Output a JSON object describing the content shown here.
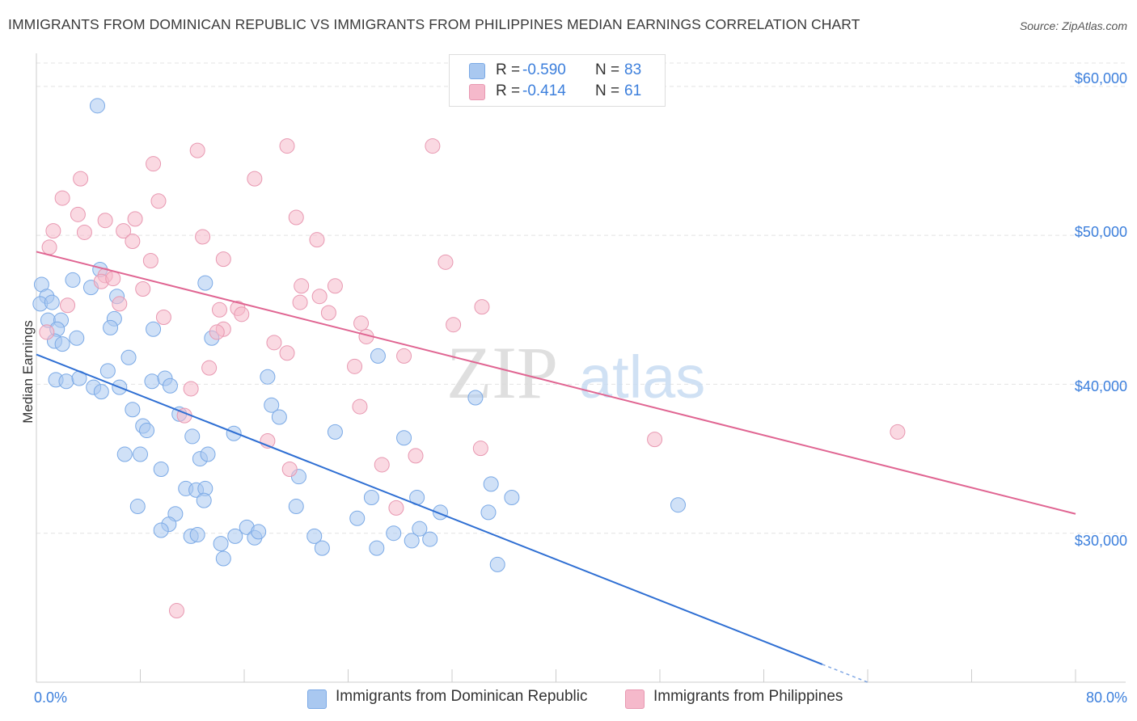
{
  "title": "IMMIGRANTS FROM DOMINICAN REPUBLIC VS IMMIGRANTS FROM PHILIPPINES MEDIAN EARNINGS CORRELATION CHART",
  "source": "Source: ZipAtlas.com",
  "watermark": {
    "zip": "ZIP",
    "atlas": "atlas"
  },
  "legend": {
    "rows": [
      {
        "r_label": "R =",
        "r_value": "-0.590",
        "n_label": "N =",
        "n_value": "83",
        "color": "#a9c8f0"
      },
      {
        "r_label": "R =",
        "r_value": "-0.414",
        "n_label": "N =",
        "n_value": "61",
        "color": "#f5b9cb"
      }
    ]
  },
  "bottom_legend": [
    "Immigrants from Dominican Republic",
    "Immigrants from Philippines"
  ],
  "colors": {
    "blue_fill": "#a9c8f0",
    "blue_stroke": "#7aa9e6",
    "blue_line": "#2f6fd3",
    "pink_fill": "#f5b9cb",
    "pink_stroke": "#e898b1",
    "pink_line": "#e06592",
    "axis_text": "#3c7fdc",
    "grid": "#e3e3e3"
  },
  "chart_data": {
    "type": "scatter",
    "title": "IMMIGRANTS FROM DOMINICAN REPUBLIC VS IMMIGRANTS FROM PHILIPPINES MEDIAN EARNINGS CORRELATION CHART",
    "xlabel": "",
    "ylabel": "Median Earnings",
    "xlim": [
      0,
      80
    ],
    "ylim": [
      20000,
      62000
    ],
    "x_tick_labels": [
      "0.0%",
      "80.0%"
    ],
    "y_ticks": [
      30000,
      40000,
      50000,
      60000
    ],
    "y_tick_labels": [
      "$30,000",
      "$40,000",
      "$50,000",
      "$60,000"
    ],
    "grid": true,
    "legend_position": "top-center",
    "series": [
      {
        "name": "Immigrants from Dominican Republic",
        "R": -0.59,
        "N": 83,
        "trend": {
          "x0": 0,
          "y0": 42000,
          "x1": 60.5,
          "y1": 21200,
          "dash_to_x": 64
        },
        "points": [
          [
            4.7,
            58700
          ],
          [
            0.4,
            46700
          ],
          [
            0.8,
            45900
          ],
          [
            0.3,
            45400
          ],
          [
            1.2,
            45500
          ],
          [
            2.8,
            47000
          ],
          [
            4.2,
            46500
          ],
          [
            4.9,
            47700
          ],
          [
            6.2,
            45900
          ],
          [
            0.9,
            44300
          ],
          [
            1.9,
            44300
          ],
          [
            1.6,
            43700
          ],
          [
            6.0,
            44400
          ],
          [
            5.7,
            43800
          ],
          [
            9.0,
            43700
          ],
          [
            13.0,
            46800
          ],
          [
            13.5,
            43100
          ],
          [
            1.4,
            42900
          ],
          [
            2.0,
            42700
          ],
          [
            3.1,
            43100
          ],
          [
            7.1,
            41800
          ],
          [
            26.3,
            41900
          ],
          [
            1.5,
            40300
          ],
          [
            2.3,
            40200
          ],
          [
            3.3,
            40400
          ],
          [
            4.4,
            39800
          ],
          [
            5.0,
            39500
          ],
          [
            6.4,
            39800
          ],
          [
            5.5,
            40900
          ],
          [
            8.9,
            40200
          ],
          [
            9.9,
            40400
          ],
          [
            10.3,
            39900
          ],
          [
            17.8,
            40500
          ],
          [
            18.1,
            38600
          ],
          [
            7.4,
            38300
          ],
          [
            11.0,
            38000
          ],
          [
            8.2,
            37200
          ],
          [
            8.5,
            36900
          ],
          [
            18.7,
            37800
          ],
          [
            23.0,
            36800
          ],
          [
            28.3,
            36400
          ],
          [
            33.8,
            39100
          ],
          [
            12.0,
            36500
          ],
          [
            15.2,
            36700
          ],
          [
            6.8,
            35300
          ],
          [
            8.0,
            35300
          ],
          [
            12.6,
            35000
          ],
          [
            13.2,
            35300
          ],
          [
            9.6,
            34300
          ],
          [
            20.2,
            33800
          ],
          [
            11.5,
            33000
          ],
          [
            12.3,
            32900
          ],
          [
            13.0,
            33000
          ],
          [
            12.9,
            32200
          ],
          [
            35.0,
            33300
          ],
          [
            7.8,
            31800
          ],
          [
            10.7,
            31300
          ],
          [
            20.0,
            31800
          ],
          [
            25.8,
            32400
          ],
          [
            29.3,
            32400
          ],
          [
            34.8,
            31400
          ],
          [
            36.6,
            32400
          ],
          [
            49.4,
            31900
          ],
          [
            10.2,
            30600
          ],
          [
            9.6,
            30200
          ],
          [
            11.9,
            29800
          ],
          [
            12.4,
            29900
          ],
          [
            14.2,
            29300
          ],
          [
            15.3,
            29800
          ],
          [
            16.2,
            30400
          ],
          [
            16.8,
            29700
          ],
          [
            17.1,
            30100
          ],
          [
            21.4,
            29800
          ],
          [
            22.0,
            29000
          ],
          [
            24.7,
            31000
          ],
          [
            26.2,
            29000
          ],
          [
            27.5,
            30000
          ],
          [
            28.9,
            29500
          ],
          [
            30.3,
            29600
          ],
          [
            31.1,
            31400
          ],
          [
            14.4,
            28300
          ],
          [
            35.5,
            27900
          ],
          [
            29.5,
            30300
          ]
        ]
      },
      {
        "name": "Immigrants from Philippines",
        "R": -0.414,
        "N": 61,
        "trend": {
          "x0": 0,
          "y0": 48900,
          "x1": 80,
          "y1": 31300
        },
        "points": [
          [
            1.0,
            49200
          ],
          [
            1.3,
            50300
          ],
          [
            2.0,
            52500
          ],
          [
            3.4,
            53800
          ],
          [
            3.2,
            51400
          ],
          [
            3.7,
            50200
          ],
          [
            5.3,
            51000
          ],
          [
            6.7,
            50300
          ],
          [
            7.4,
            49600
          ],
          [
            7.6,
            51100
          ],
          [
            9.0,
            54800
          ],
          [
            9.4,
            52300
          ],
          [
            12.4,
            55700
          ],
          [
            12.8,
            49900
          ],
          [
            14.4,
            48400
          ],
          [
            16.8,
            53800
          ],
          [
            19.3,
            56000
          ],
          [
            20.0,
            51200
          ],
          [
            21.6,
            49700
          ],
          [
            30.5,
            56000
          ],
          [
            31.5,
            48200
          ],
          [
            5.3,
            47300
          ],
          [
            5.0,
            46900
          ],
          [
            5.9,
            47100
          ],
          [
            8.2,
            46400
          ],
          [
            8.8,
            48300
          ],
          [
            2.4,
            45300
          ],
          [
            6.4,
            45400
          ],
          [
            9.8,
            44500
          ],
          [
            14.1,
            45000
          ],
          [
            15.5,
            45100
          ],
          [
            15.8,
            44700
          ],
          [
            20.3,
            45500
          ],
          [
            20.4,
            46600
          ],
          [
            21.8,
            45900
          ],
          [
            22.5,
            44800
          ],
          [
            23.0,
            46600
          ],
          [
            25.0,
            44100
          ],
          [
            34.3,
            45200
          ],
          [
            0.8,
            43500
          ],
          [
            14.4,
            43700
          ],
          [
            18.3,
            42800
          ],
          [
            19.3,
            42100
          ],
          [
            25.4,
            43200
          ],
          [
            28.3,
            41900
          ],
          [
            32.1,
            44000
          ],
          [
            13.3,
            41100
          ],
          [
            24.5,
            41200
          ],
          [
            11.9,
            39700
          ],
          [
            11.4,
            37900
          ],
          [
            24.9,
            38500
          ],
          [
            17.8,
            36200
          ],
          [
            19.5,
            34300
          ],
          [
            26.6,
            34600
          ],
          [
            29.2,
            35200
          ],
          [
            34.2,
            35700
          ],
          [
            47.6,
            36300
          ],
          [
            66.3,
            36800
          ],
          [
            27.7,
            31700
          ],
          [
            10.8,
            24800
          ],
          [
            13.9,
            43500
          ]
        ]
      }
    ]
  }
}
